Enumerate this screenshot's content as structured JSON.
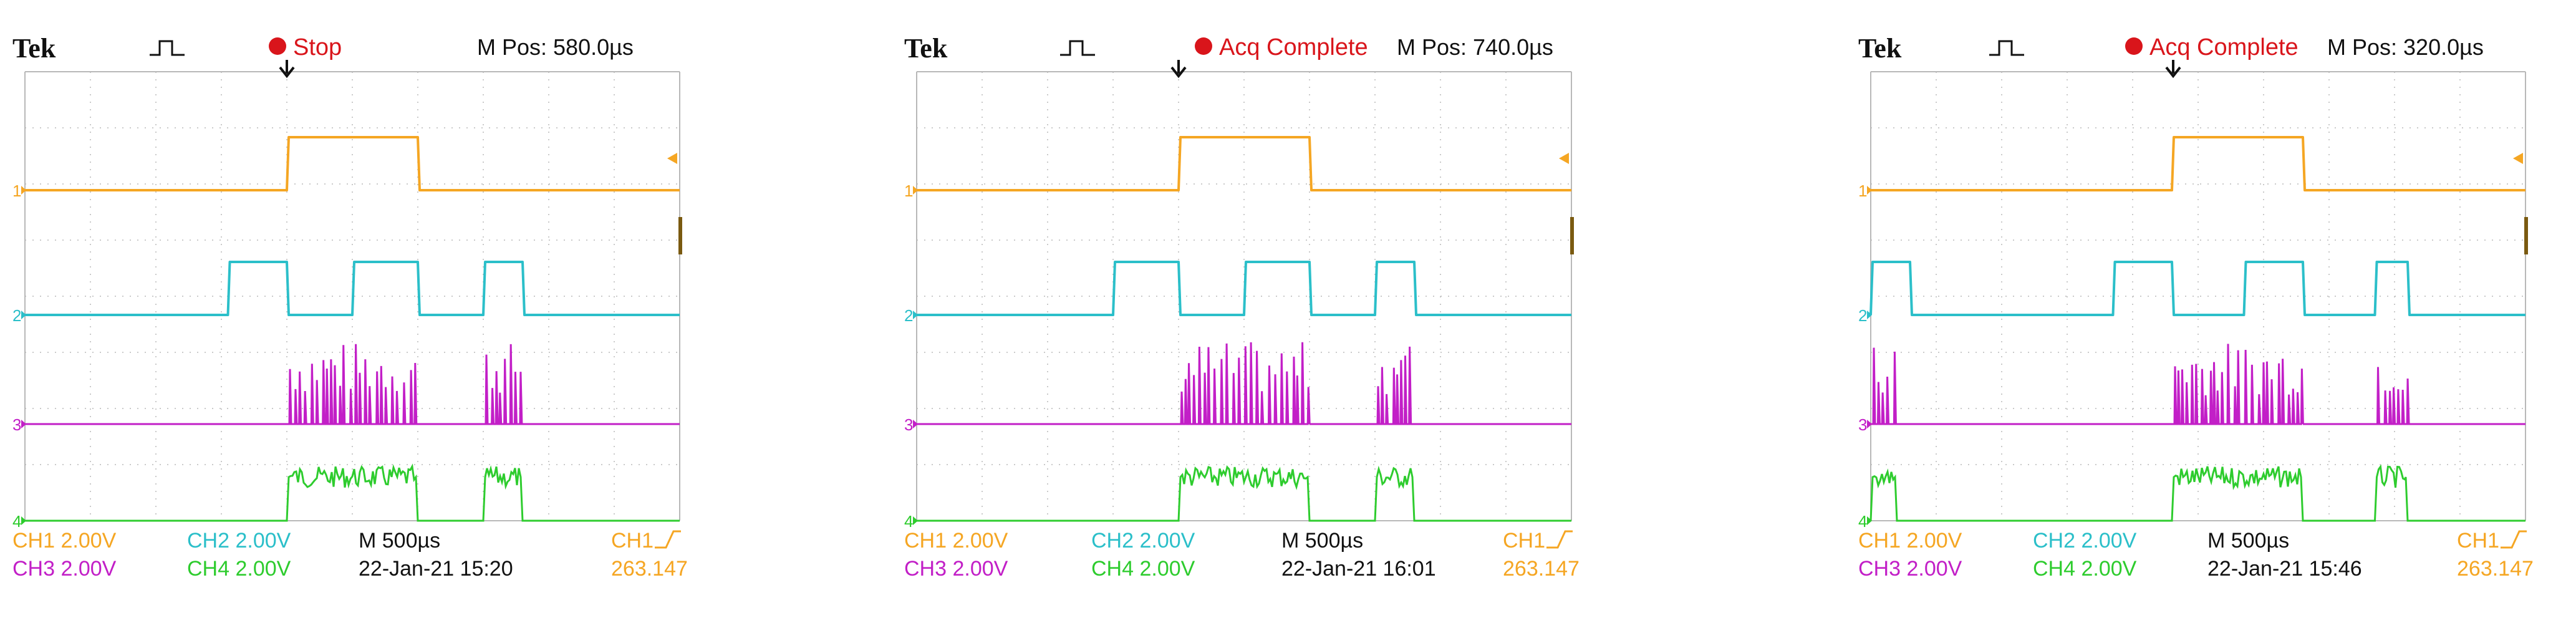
{
  "scopes": [
    {
      "brand": "Tek",
      "status": "Stop",
      "mpos": "M Pos: 580.0µs",
      "ch1": "CH1  2.00V",
      "ch2": "CH2  2.00V",
      "ch3": "CH3  2.00V",
      "ch4": "CH4  2.00V",
      "timebase": "M 500µs",
      "datetime": "22-Jan-21 15:20",
      "trig_label": "CH1",
      "trig_value": "263.147",
      "ch1_pulses": [
        [
          0.4,
          0.6
        ]
      ],
      "ch2_pulses": [
        [
          0.31,
          0.4
        ],
        [
          0.5,
          0.6
        ],
        [
          0.7,
          0.76
        ]
      ],
      "ch3_bursts": [
        [
          0.4,
          0.6
        ],
        [
          0.7,
          0.76
        ]
      ],
      "ch4_bursts": [
        [
          0.4,
          0.6
        ],
        [
          0.7,
          0.76
        ]
      ]
    },
    {
      "brand": "Tek",
      "status": "Acq Complete",
      "mpos": "M Pos: 740.0µs",
      "ch1": "CH1  2.00V",
      "ch2": "CH2  2.00V",
      "ch3": "CH3  2.00V",
      "ch4": "CH4  2.00V",
      "timebase": "M 500µs",
      "datetime": "22-Jan-21 16:01",
      "trig_label": "CH1",
      "trig_value": "263.147",
      "ch1_pulses": [
        [
          0.4,
          0.6
        ]
      ],
      "ch2_pulses": [
        [
          0.3,
          0.4
        ],
        [
          0.5,
          0.6
        ],
        [
          0.7,
          0.76
        ]
      ],
      "ch3_bursts": [
        [
          0.4,
          0.6
        ],
        [
          0.7,
          0.76
        ]
      ],
      "ch4_bursts": [
        [
          0.4,
          0.6
        ],
        [
          0.7,
          0.76
        ]
      ]
    },
    {
      "brand": "Tek",
      "status": "Acq Complete",
      "mpos": "M Pos: 320.0µs",
      "ch1": "CH1  2.00V",
      "ch2": "CH2  2.00V",
      "ch3": "CH3  2.00V",
      "ch4": "CH4  2.00V",
      "timebase": "M 500µs",
      "datetime": "22-Jan-21 15:46",
      "trig_label": "CH1",
      "trig_value": "263.147",
      "ch1_pulses": [
        [
          0.46,
          0.66
        ]
      ],
      "ch2_pulses": [
        [
          0.0,
          0.06
        ],
        [
          0.37,
          0.46
        ],
        [
          0.57,
          0.66
        ],
        [
          0.77,
          0.82
        ]
      ],
      "ch3_bursts": [
        [
          0.0,
          0.04
        ],
        [
          0.46,
          0.66
        ],
        [
          0.77,
          0.82
        ]
      ],
      "ch4_bursts": [
        [
          0.0,
          0.04
        ],
        [
          0.46,
          0.66
        ],
        [
          0.77,
          0.82
        ]
      ]
    }
  ],
  "colors": {
    "ch1": "#f5a623",
    "ch2": "#2bbfc9",
    "ch3": "#c21fc7",
    "ch4": "#2ecc2e",
    "grid": "#b8b8b8",
    "status_dot": "#d9151b",
    "text": "#111111"
  }
}
